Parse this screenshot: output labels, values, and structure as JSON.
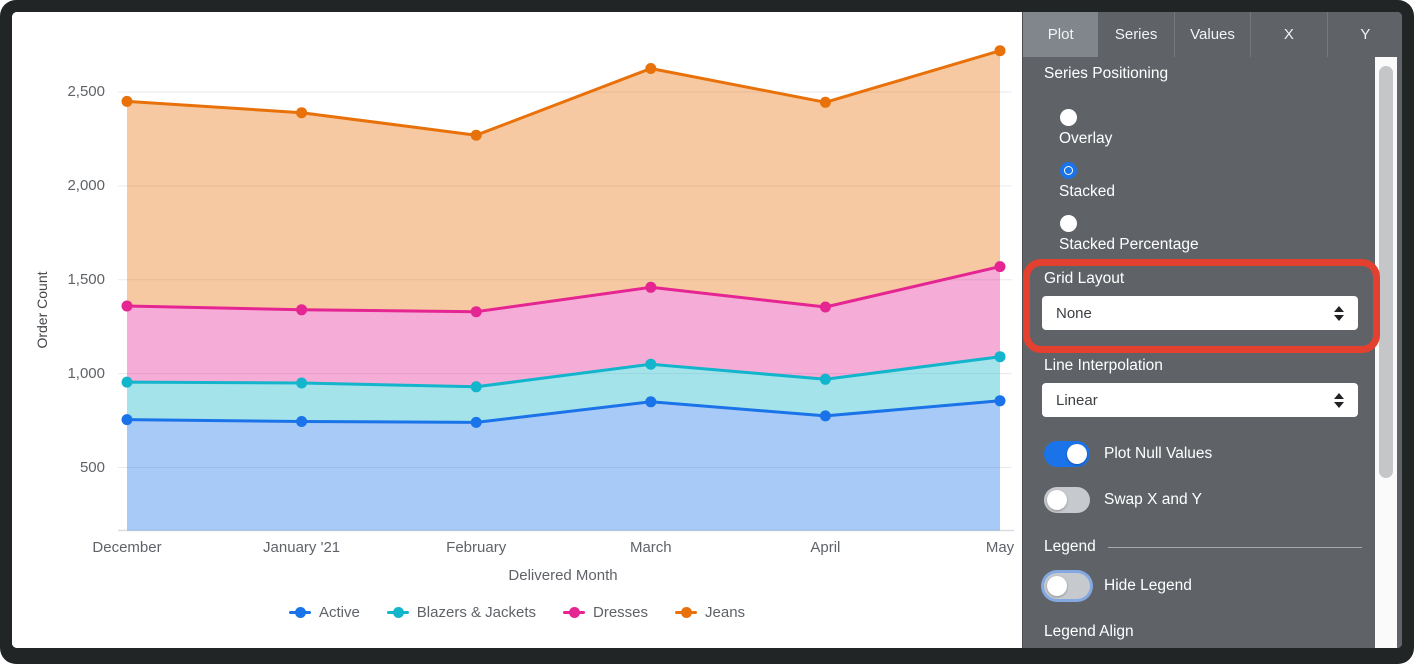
{
  "chart_data": {
    "type": "area",
    "stacked": true,
    "xlabel": "Delivered Month",
    "ylabel": "Order Count",
    "categories": [
      "December",
      "January '21",
      "February",
      "March",
      "April",
      "May"
    ],
    "y_ticks": [
      {
        "value": 500,
        "label": "500"
      },
      {
        "value": 1000,
        "label": "1,000"
      },
      {
        "value": 1500,
        "label": "1,500"
      },
      {
        "value": 2000,
        "label": "2,000"
      },
      {
        "value": 2500,
        "label": "2,500"
      }
    ],
    "series": [
      {
        "name": "Active",
        "color": "#1a73e8",
        "values": [
          755,
          745,
          740,
          850,
          775,
          855
        ]
      },
      {
        "name": "Blazers & Jackets",
        "color": "#12b5cb",
        "values": [
          200,
          205,
          190,
          200,
          195,
          235
        ]
      },
      {
        "name": "Dresses",
        "color": "#e52592",
        "values": [
          405,
          390,
          400,
          410,
          385,
          480
        ]
      },
      {
        "name": "Jeans",
        "color": "#e8710a",
        "values": [
          1090,
          1050,
          940,
          1165,
          1090,
          1150
        ]
      }
    ],
    "stacked_totals": {
      "Active": [
        755,
        745,
        740,
        850,
        775,
        855
      ],
      "Blazers & Jackets": [
        955,
        950,
        930,
        1050,
        970,
        1090
      ],
      "Dresses": [
        1360,
        1340,
        1330,
        1460,
        1355,
        1570
      ],
      "Jeans": [
        2450,
        2390,
        2270,
        2625,
        2445,
        2720
      ]
    },
    "legend_position": "bottom",
    "grid": true
  },
  "panel": {
    "tabs": [
      {
        "label": "Plot",
        "active": true
      },
      {
        "label": "Series",
        "active": false
      },
      {
        "label": "Values",
        "active": false
      },
      {
        "label": "X",
        "active": false
      },
      {
        "label": "Y",
        "active": false
      }
    ],
    "series_positioning": {
      "label": "Series Positioning",
      "options": [
        {
          "label": "Overlay",
          "selected": false
        },
        {
          "label": "Stacked",
          "selected": true
        },
        {
          "label": "Stacked Percentage",
          "selected": false
        }
      ]
    },
    "grid_layout": {
      "label": "Grid Layout",
      "value": "None",
      "annotated": true
    },
    "line_interpolation": {
      "label": "Line Interpolation",
      "value": "Linear"
    },
    "plot_null_values": {
      "label": "Plot Null Values",
      "on": true
    },
    "swap_x_y": {
      "label": "Swap X and Y",
      "on": false
    },
    "legend_section": {
      "label": "Legend"
    },
    "hide_legend": {
      "label": "Hide Legend",
      "on": false
    },
    "legend_align": {
      "label": "Legend Align"
    }
  },
  "annotation": {
    "shape": "rounded-rect",
    "color": "#e3402f",
    "target": "grid-layout-control"
  }
}
